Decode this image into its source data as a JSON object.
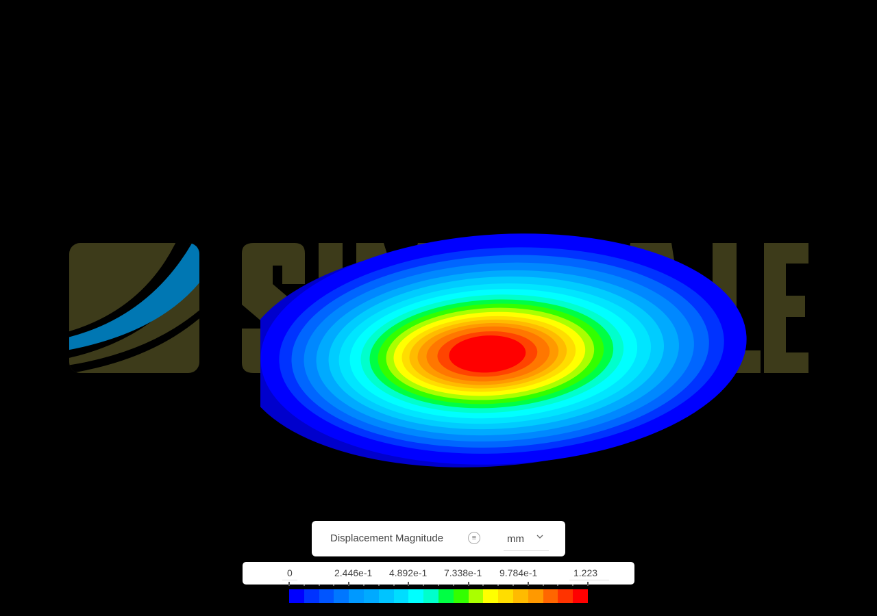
{
  "viewport": {
    "background": "#000000",
    "watermark": {
      "text": "SIMSCALE",
      "mark_color": "#3d3b1a",
      "stripe_color": "#0077b3",
      "text_color": "#3d3b1a"
    },
    "model": {
      "type": "circular plate displacement contour",
      "contour_colors": [
        "#0000ff",
        "#0033ff",
        "#0066ff",
        "#0088ff",
        "#00aaff",
        "#00ccff",
        "#00e5ff",
        "#00ffff",
        "#00ffcc",
        "#00ff44",
        "#33ff00",
        "#aaff00",
        "#ffff00",
        "#ffdd00",
        "#ffbb00",
        "#ff9900",
        "#ff7700",
        "#ff4400",
        "#ff0000"
      ]
    }
  },
  "legend": {
    "title": "Displacement Magnitude",
    "info_icon": "list-icon",
    "unit": "mm",
    "unit_dropdown_icon": "chevron-down-icon",
    "tick_labels": [
      "0",
      "2.446e-1",
      "4.892e-1",
      "7.338e-1",
      "9.784e-1",
      "1.223"
    ],
    "min": 0,
    "max": 1.223,
    "colorbar": [
      "#0000ff",
      "#0033ff",
      "#0055ff",
      "#0077ff",
      "#0099ff",
      "#00aaff",
      "#00c4ff",
      "#00ddff",
      "#00ffff",
      "#00ffcc",
      "#00ff44",
      "#33ff00",
      "#aaff00",
      "#ffff00",
      "#ffdd00",
      "#ffbb00",
      "#ff9900",
      "#ff6600",
      "#ff3300",
      "#ff0000"
    ]
  }
}
